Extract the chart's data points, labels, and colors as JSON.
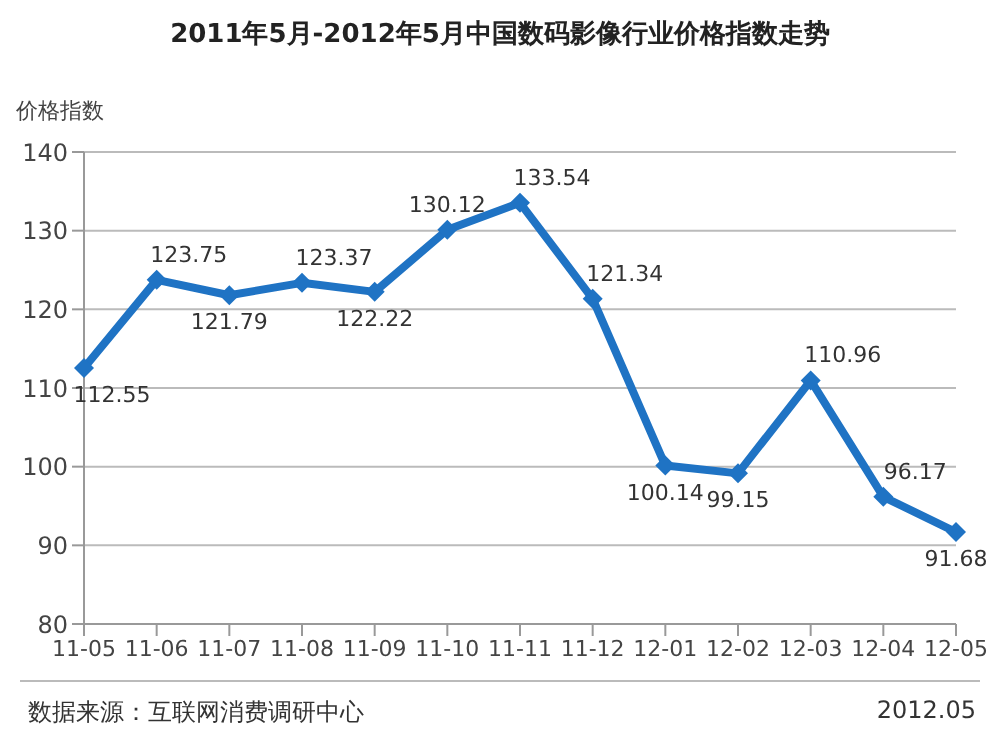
{
  "chart_data": {
    "type": "line",
    "title": "2011年5月-2012年5月中国数码影像行业价格指数走势",
    "ylabel": "价格指数",
    "categories": [
      "11-05",
      "11-06",
      "11-07",
      "11-08",
      "11-09",
      "11-10",
      "11-11",
      "11-12",
      "12-01",
      "12-02",
      "12-03",
      "12-04",
      "12-05"
    ],
    "series": [
      {
        "color": "#1f73c4",
        "values": [
          112.55,
          123.75,
          121.79,
          123.37,
          122.22,
          130.12,
          133.54,
          121.34,
          100.14,
          99.15,
          110.96,
          96.17,
          91.68
        ]
      }
    ],
    "ylim": [
      80,
      140
    ],
    "yticks": [
      80,
      90,
      100,
      110,
      120,
      130,
      140
    ],
    "grid": "y",
    "marker": "diamond",
    "line_style": "solid",
    "data_labels": true,
    "legend": false,
    "annotations": [
      "数据来源：互联网消费调研中心",
      "2012.05"
    ]
  }
}
